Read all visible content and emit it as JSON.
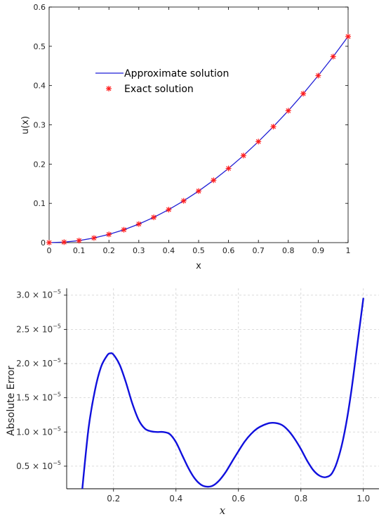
{
  "chart_data": [
    {
      "type": "line",
      "xlabel": "x",
      "ylabel": "u(x)",
      "xlim": [
        0,
        1
      ],
      "ylim": [
        0,
        0.6
      ],
      "x_ticks": [
        "0",
        "0.1",
        "0.2",
        "0.3",
        "0.4",
        "0.5",
        "0.6",
        "0.7",
        "0.8",
        "0.9",
        "1"
      ],
      "y_ticks": [
        "0",
        "0.1",
        "0.2",
        "0.3",
        "0.4",
        "0.5",
        "0.6"
      ],
      "grid": false,
      "legend_position": "upper-left",
      "series": [
        {
          "name": "Approximate solution",
          "style": "line",
          "color": "#1f1fd6",
          "x": [
            0,
            0.05,
            0.1,
            0.15,
            0.2,
            0.25,
            0.3,
            0.35,
            0.4,
            0.45,
            0.5,
            0.55,
            0.6,
            0.65,
            0.7,
            0.75,
            0.8,
            0.85,
            0.9,
            0.95,
            1
          ],
          "y": [
            0,
            0.0015,
            0.0058,
            0.0131,
            0.0233,
            0.0364,
            0.0524,
            0.0713,
            0.0931,
            0.1178,
            0.1454,
            0.1759,
            0.2094,
            0.2457,
            0.285,
            0.3271,
            0.3722,
            0.4201,
            0.471,
            0.5248,
            0.525
          ]
        },
        {
          "name": "Exact solution",
          "style": "marker",
          "marker": "*",
          "color": "#ff1a1a",
          "x": [
            0,
            0.05,
            0.1,
            0.15,
            0.2,
            0.25,
            0.3,
            0.35,
            0.4,
            0.45,
            0.5,
            0.55,
            0.6,
            0.65,
            0.7,
            0.75,
            0.8,
            0.85,
            0.9,
            0.95,
            1
          ],
          "y": [
            0,
            0.0013,
            0.0052,
            0.0118,
            0.021,
            0.0328,
            0.0472,
            0.0643,
            0.084,
            0.1063,
            0.1313,
            0.1588,
            0.189,
            0.2218,
            0.2573,
            0.2953,
            0.336,
            0.3793,
            0.4253,
            0.4738,
            0.525
          ]
        }
      ]
    },
    {
      "type": "line",
      "xlabel": "x",
      "ylabel": "Absolute Error",
      "xlim": [
        0.05,
        1.05
      ],
      "ylim": [
        0.17,
        3.1
      ],
      "y_unit_exponent": "−5",
      "x_ticks": [
        "0.2",
        "0.4",
        "0.6",
        "0.8",
        "1.0"
      ],
      "y_ticks": [
        "0.5",
        "1.0",
        "1.5",
        "2.0",
        "2.5",
        "3.0"
      ],
      "grid": true,
      "series": [
        {
          "color": "#1010dd",
          "x": [
            0.1,
            0.12,
            0.14,
            0.16,
            0.18,
            0.19,
            0.2,
            0.22,
            0.24,
            0.26,
            0.28,
            0.3,
            0.32,
            0.34,
            0.36,
            0.38,
            0.4,
            0.42,
            0.44,
            0.46,
            0.48,
            0.5,
            0.52,
            0.54,
            0.56,
            0.58,
            0.6,
            0.62,
            0.64,
            0.66,
            0.68,
            0.7,
            0.72,
            0.74,
            0.76,
            0.78,
            0.8,
            0.82,
            0.84,
            0.86,
            0.88,
            0.9,
            0.92,
            0.94,
            0.96,
            0.98,
            1.0
          ],
          "y": [
            0.17,
            1.05,
            1.6,
            1.95,
            2.12,
            2.15,
            2.13,
            1.98,
            1.72,
            1.42,
            1.18,
            1.05,
            1.01,
            1.0,
            1.0,
            0.97,
            0.85,
            0.66,
            0.47,
            0.32,
            0.23,
            0.2,
            0.22,
            0.3,
            0.42,
            0.57,
            0.72,
            0.86,
            0.97,
            1.05,
            1.1,
            1.13,
            1.13,
            1.1,
            1.02,
            0.9,
            0.75,
            0.58,
            0.44,
            0.36,
            0.34,
            0.4,
            0.62,
            1.0,
            1.55,
            2.25,
            2.96
          ]
        }
      ]
    }
  ]
}
